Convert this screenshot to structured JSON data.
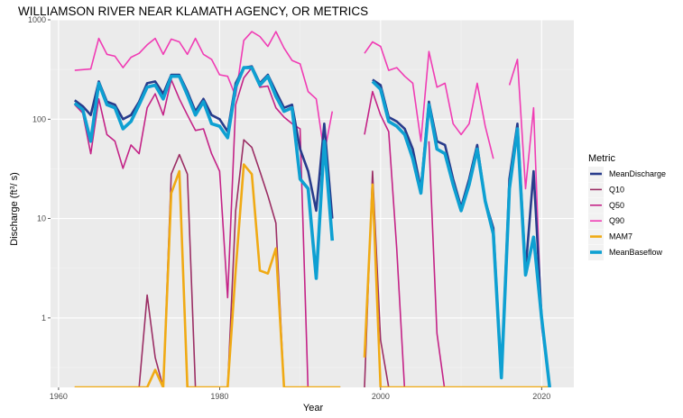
{
  "chart_data": {
    "type": "line",
    "title": "WILLIAMSON RIVER NEAR KLAMATH AGENCY, OR  METRICS",
    "xlabel": "Year",
    "ylabel": "Discharge (ft^3/s)",
    "ylabel_base": "Discharge (ft",
    "ylabel_sup": "3",
    "ylabel_tail": "/ s)",
    "y_scale": "log10",
    "xlim": [
      1959,
      2024
    ],
    "ylim": [
      0.2,
      1000
    ],
    "x_ticks": [
      1960,
      1980,
      2000,
      2020
    ],
    "x_tick_labels": [
      "1960",
      "1980",
      "2000",
      "2020"
    ],
    "y_ticks": [
      1,
      10,
      100,
      1000
    ],
    "y_tick_labels": [
      "1",
      "10",
      "100",
      "1000"
    ],
    "grid": true,
    "panel_background": "#ebebeb",
    "legend": {
      "title": "Metric",
      "position": "right"
    },
    "series": [
      {
        "name": "Q90",
        "color": "#f03cb4",
        "width": 1.6,
        "x": [
          1962,
          1963,
          1964,
          1965,
          1966,
          1967,
          1968,
          1969,
          1970,
          1971,
          1972,
          1973,
          1974,
          1975,
          1976,
          1977,
          1978,
          1979,
          1980,
          1981,
          1982,
          1983,
          1984,
          1985,
          1986,
          1987,
          1988,
          1989,
          1990,
          1991,
          1992,
          1993,
          1994,
          1995,
          1996,
          1997,
          1998,
          1999,
          2000,
          2001,
          2002,
          2003,
          2004,
          2005,
          2006,
          2007,
          2008,
          2009,
          2010,
          2011,
          2012,
          2013,
          2014,
          2015,
          2016,
          2017,
          2018,
          2019,
          2020,
          2021
        ],
        "y": [
          310,
          315,
          320,
          650,
          450,
          430,
          330,
          420,
          460,
          560,
          650,
          450,
          640,
          600,
          450,
          650,
          450,
          400,
          280,
          270,
          170,
          620,
          760,
          680,
          540,
          760,
          520,
          390,
          360,
          190,
          160,
          45,
          120,
          null,
          null,
          null,
          460,
          600,
          540,
          310,
          330,
          270,
          230,
          60,
          480,
          210,
          230,
          90,
          70,
          90,
          230,
          85,
          40,
          null,
          220,
          400,
          20,
          130,
          0.8,
          0.2
        ]
      },
      {
        "name": "Q50",
        "color": "#c42387",
        "width": 1.6,
        "x": [
          1962,
          1963,
          1964,
          1965,
          1966,
          1967,
          1968,
          1969,
          1970,
          1971,
          1972,
          1973,
          1974,
          1975,
          1976,
          1977,
          1978,
          1979,
          1980,
          1981,
          1982,
          1983,
          1984,
          1985,
          1986,
          1987,
          1988,
          1989,
          1990,
          1991,
          1992,
          1993,
          1994,
          1995,
          1996,
          1997,
          1998,
          1999,
          2000,
          2001,
          2002,
          2003,
          2004,
          2005,
          2006,
          2007,
          2008,
          2009,
          2010,
          2011,
          2012,
          2013,
          2014,
          2015,
          2016,
          2017,
          2018,
          2019,
          2020,
          2021
        ],
        "y": [
          140,
          115,
          45,
          160,
          70,
          60,
          32,
          55,
          45,
          130,
          180,
          110,
          250,
          160,
          110,
          77,
          80,
          45,
          30,
          1.6,
          140,
          260,
          330,
          210,
          215,
          130,
          105,
          90,
          80,
          0.1,
          null,
          null,
          null,
          10,
          null,
          null,
          70,
          190,
          110,
          75,
          5,
          0.1,
          null,
          null,
          60,
          0.7,
          0.1,
          null,
          null,
          null,
          null,
          null,
          null,
          null,
          null,
          null,
          null,
          null,
          null,
          null
        ]
      },
      {
        "name": "Q10",
        "color": "#9b2e64",
        "width": 1.6,
        "x": [
          1962,
          1963,
          1964,
          1965,
          1966,
          1967,
          1968,
          1969,
          1970,
          1971,
          1972,
          1973,
          1974,
          1975,
          1976,
          1977,
          1978,
          1979,
          1980,
          1981,
          1982,
          1983,
          1984,
          1985,
          1986,
          1987,
          1988,
          1989,
          1990,
          1991,
          1992,
          1993,
          1994,
          1995,
          1996,
          1997,
          1998,
          1999,
          2000,
          2001,
          2002,
          2003,
          2004,
          2005,
          2006,
          2007,
          2008,
          2009,
          2010,
          2011,
          2012,
          2013,
          2014,
          2015,
          2016,
          2017,
          2018,
          2019,
          2020,
          2021
        ],
        "y": [
          0.2,
          0.2,
          0.2,
          0.2,
          0.2,
          0.2,
          0.2,
          0.2,
          0.2,
          1.7,
          0.4,
          0.2,
          28,
          44,
          28,
          0.2,
          0.2,
          0.2,
          0.2,
          0.2,
          12,
          62,
          52,
          30,
          17,
          9,
          0.2,
          0.2,
          0.2,
          0.2,
          0.2,
          0.2,
          0.2,
          0.2,
          null,
          null,
          0.2,
          30,
          0.6,
          0.2,
          0.2,
          0.2,
          0.2,
          0.2,
          0.2,
          0.2,
          0.2,
          0.2,
          0.2,
          0.2,
          0.2,
          0.2,
          0.2,
          0.2,
          0.2,
          0.2,
          0.2,
          0.2,
          0.2,
          0.2
        ]
      },
      {
        "name": "MAM7",
        "color": "#f0aa14",
        "width": 2.6,
        "x": [
          1962,
          1963,
          1964,
          1965,
          1966,
          1967,
          1968,
          1969,
          1970,
          1971,
          1972,
          1973,
          1974,
          1975,
          1976,
          1977,
          1978,
          1979,
          1980,
          1981,
          1982,
          1983,
          1984,
          1985,
          1986,
          1987,
          1988,
          1989,
          1990,
          1991,
          1992,
          1993,
          1994,
          1995,
          1996,
          1997,
          1998,
          1999,
          2000,
          2001,
          2002,
          2003,
          2004,
          2005,
          2006,
          2007,
          2008,
          2009,
          2010,
          2011,
          2012,
          2013,
          2014,
          2015,
          2016,
          2017,
          2018,
          2019,
          2020,
          2021
        ],
        "y": [
          0.2,
          0.2,
          0.2,
          0.2,
          0.2,
          0.2,
          0.2,
          0.2,
          0.2,
          0.2,
          0.3,
          0.2,
          18,
          30,
          0.2,
          0.2,
          0.2,
          0.2,
          0.2,
          0.2,
          3,
          35,
          28,
          3,
          2.8,
          5,
          0.2,
          0.2,
          0.2,
          0.2,
          0.2,
          0.2,
          0.2,
          0.2,
          null,
          null,
          0.4,
          22,
          0.2,
          0.2,
          0.2,
          0.2,
          0.2,
          0.2,
          0.2,
          0.2,
          0.2,
          0.2,
          0.2,
          0.2,
          0.2,
          0.2,
          0.2,
          0.2,
          0.2,
          0.2,
          0.2,
          0.2,
          0.2,
          0.2
        ]
      },
      {
        "name": "MeanDischarge",
        "color": "#283c8c",
        "width": 2.6,
        "x": [
          1962,
          1963,
          1964,
          1965,
          1966,
          1967,
          1968,
          1969,
          1970,
          1971,
          1972,
          1973,
          1974,
          1975,
          1976,
          1977,
          1978,
          1979,
          1980,
          1981,
          1982,
          1983,
          1984,
          1985,
          1986,
          1987,
          1988,
          1989,
          1990,
          1991,
          1992,
          1993,
          1994,
          1995,
          1996,
          1997,
          1998,
          1999,
          2000,
          2001,
          2002,
          2003,
          2004,
          2005,
          2006,
          2007,
          2008,
          2009,
          2010,
          2011,
          2012,
          2013,
          2014,
          2015,
          2016,
          2017,
          2018,
          2019,
          2020,
          2021
        ],
        "y": [
          155,
          135,
          110,
          240,
          150,
          140,
          100,
          110,
          150,
          230,
          240,
          180,
          280,
          280,
          190,
          120,
          160,
          110,
          100,
          75,
          230,
          330,
          340,
          230,
          280,
          190,
          130,
          140,
          50,
          30,
          12,
          90,
          10,
          null,
          null,
          null,
          null,
          250,
          220,
          105,
          95,
          80,
          50,
          20,
          150,
          60,
          55,
          25,
          13,
          25,
          55,
          15,
          8,
          0.25,
          25,
          90,
          3,
          30,
          1,
          0.2
        ]
      },
      {
        "name": "MeanBaseflow",
        "color": "#0ea0d2",
        "width": 3.6,
        "x": [
          1962,
          1963,
          1964,
          1965,
          1966,
          1967,
          1968,
          1969,
          1970,
          1971,
          1972,
          1973,
          1974,
          1975,
          1976,
          1977,
          1978,
          1979,
          1980,
          1981,
          1982,
          1983,
          1984,
          1985,
          1986,
          1987,
          1988,
          1989,
          1990,
          1991,
          1992,
          1993,
          1994,
          1995,
          1996,
          1997,
          1998,
          1999,
          2000,
          2001,
          2002,
          2003,
          2004,
          2005,
          2006,
          2007,
          2008,
          2009,
          2010,
          2011,
          2012,
          2013,
          2014,
          2015,
          2016,
          2017,
          2018,
          2019,
          2020,
          2021
        ],
        "y": [
          145,
          125,
          60,
          230,
          140,
          130,
          80,
          95,
          140,
          210,
          220,
          160,
          270,
          270,
          175,
          110,
          150,
          90,
          85,
          65,
          210,
          330,
          330,
          220,
          270,
          170,
          120,
          130,
          25,
          20,
          2.5,
          60,
          6,
          null,
          null,
          null,
          null,
          240,
          200,
          95,
          85,
          70,
          40,
          18,
          140,
          50,
          45,
          22,
          12,
          22,
          50,
          15,
          7,
          0.25,
          20,
          80,
          2.7,
          6.5,
          1,
          0.2
        ]
      }
    ]
  }
}
